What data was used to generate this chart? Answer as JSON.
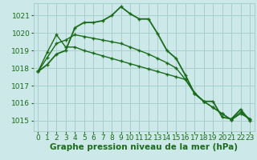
{
  "background_color": "#cce8e8",
  "grid_color": "#a8cece",
  "line_color": "#1a6b1a",
  "marker_color": "#1a6b1a",
  "xlabel": "Graphe pression niveau de la mer (hPa)",
  "ylim": [
    1014.4,
    1021.7
  ],
  "xlim": [
    -0.5,
    23.5
  ],
  "yticks": [
    1015,
    1016,
    1017,
    1018,
    1019,
    1020,
    1021
  ],
  "xticks": [
    0,
    1,
    2,
    3,
    4,
    5,
    6,
    7,
    8,
    9,
    10,
    11,
    12,
    13,
    14,
    15,
    16,
    17,
    18,
    19,
    20,
    21,
    22,
    23
  ],
  "series": [
    [
      1017.8,
      1018.2,
      1018.8,
      1019.0,
      1020.3,
      1020.6,
      1020.6,
      1020.7,
      1021.0,
      1021.5,
      1021.1,
      1020.8,
      1020.8,
      1019.95,
      1019.0,
      1018.55,
      1017.6,
      1016.55,
      1016.1,
      1016.1,
      1015.2,
      1015.1,
      1015.65,
      1015.0
    ],
    [
      1017.8,
      1018.9,
      1019.9,
      1019.2,
      1019.2,
      1019.0,
      1018.85,
      1018.7,
      1018.55,
      1018.4,
      1018.25,
      1018.1,
      1017.95,
      1017.8,
      1017.65,
      1017.5,
      1017.35,
      1016.6,
      1016.1,
      1015.75,
      1015.4,
      1015.05,
      1015.4,
      1015.1
    ],
    [
      1017.8,
      1018.6,
      1019.4,
      1019.6,
      1019.9,
      1019.8,
      1019.7,
      1019.6,
      1019.5,
      1019.4,
      1019.2,
      1019.0,
      1018.8,
      1018.55,
      1018.3,
      1018.0,
      1017.35,
      1016.55,
      1016.1,
      1015.75,
      1015.4,
      1015.05,
      1015.5,
      1015.1
    ]
  ],
  "linewidths": [
    1.3,
    1.0,
    1.0
  ],
  "font_color": "#1a6b1a",
  "xlabel_fontsize": 7.5,
  "tick_fontsize": 6.5,
  "marker_size": 3.5
}
